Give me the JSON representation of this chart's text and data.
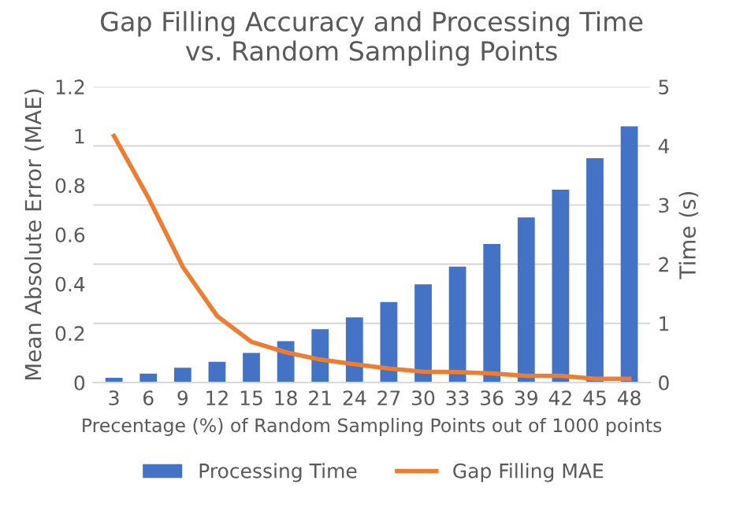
{
  "chart_data": {
    "type": "bar",
    "title": "Gap Filling Accuracy and Processing Time\nvs. Random Sampling Points",
    "xlabel": "Precentage (%) of Random Sampling Points out of 1000 points",
    "ylabel": "Mean Absolute Error (MAE)",
    "y2label": "Time (s)",
    "categories": [
      "3",
      "6",
      "9",
      "12",
      "15",
      "18",
      "21",
      "24",
      "27",
      "30",
      "33",
      "36",
      "39",
      "42",
      "45",
      "48"
    ],
    "series": [
      {
        "name": "Processing Time",
        "axis": "y2",
        "color": "#4472c4",
        "values": [
          0.08,
          0.15,
          0.25,
          0.35,
          0.5,
          0.7,
          0.9,
          1.1,
          1.36,
          1.66,
          1.96,
          2.34,
          2.79,
          3.26,
          3.79,
          4.33
        ]
      },
      {
        "name": "Gap Filling MAE",
        "type": "line",
        "color": "#ed7d31",
        "values": [
          1.0,
          0.75,
          0.47,
          0.27,
          0.165,
          0.123,
          0.093,
          0.074,
          0.057,
          0.044,
          0.042,
          0.037,
          0.027,
          0.027,
          0.015,
          0.015
        ]
      }
    ],
    "ylim": [
      0,
      1.2
    ],
    "yticks": [
      0,
      0.2,
      0.4,
      0.6,
      0.8,
      1,
      1.2
    ],
    "y2lim": [
      0,
      5
    ],
    "y2ticks": [
      0,
      1,
      2,
      3,
      4,
      5
    ],
    "grid": "y",
    "legend": "bottom",
    "marker": "none",
    "line_style": "solid"
  }
}
